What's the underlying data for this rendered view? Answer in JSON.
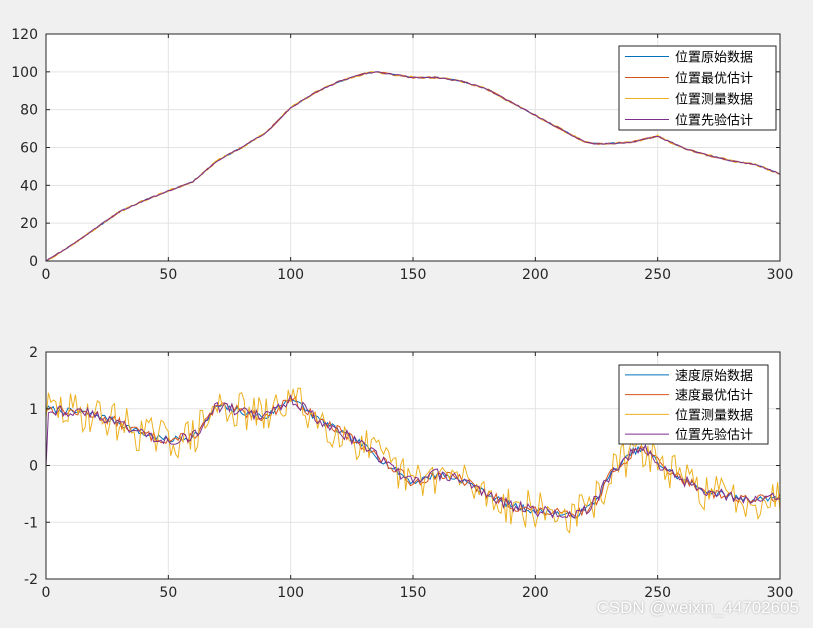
{
  "watermark": "CSDN @weixin_44702605",
  "colors": {
    "series1": "#0072BD",
    "series2": "#D95319",
    "series3": "#EDB120",
    "series4": "#7E2F8E",
    "grid": "#e3e3e3",
    "axis": "#262626",
    "figure_bg": "#f0f0f0",
    "axes_bg": "#ffffff"
  },
  "chart_data": [
    {
      "type": "line",
      "title": "",
      "xlabel": "",
      "ylabel": "",
      "xlim": [
        0,
        300
      ],
      "ylim": [
        0,
        120
      ],
      "xticks": [
        0,
        50,
        100,
        150,
        200,
        250,
        300
      ],
      "yticks": [
        0,
        20,
        40,
        60,
        80,
        100,
        120
      ],
      "grid": true,
      "legend_position": "top-right",
      "trend": {
        "x": [
          0,
          10,
          20,
          30,
          40,
          50,
          60,
          70,
          80,
          90,
          100,
          110,
          120,
          130,
          135,
          140,
          150,
          160,
          170,
          180,
          190,
          200,
          210,
          220,
          225,
          230,
          240,
          250,
          260,
          270,
          280,
          290,
          300
        ],
        "y": [
          0,
          8,
          17,
          26,
          32,
          37,
          42,
          53,
          60,
          68,
          81,
          89,
          95,
          99,
          100,
          99,
          97,
          97,
          95,
          91,
          84,
          77,
          70,
          63,
          62,
          62,
          63,
          66,
          60,
          56,
          53,
          51,
          46
        ]
      },
      "series": [
        {
          "name": "位置原始数据",
          "noise": 0.3,
          "seed": 11
        },
        {
          "name": "位置最优估计",
          "noise": 0.4,
          "seed": 23
        },
        {
          "name": "位置测量数据",
          "noise": 0.6,
          "seed": 37
        },
        {
          "name": "位置先验估计",
          "noise": 0.35,
          "seed": 51
        }
      ]
    },
    {
      "type": "line",
      "title": "",
      "xlabel": "",
      "ylabel": "",
      "xlim": [
        0,
        300
      ],
      "ylim": [
        -2,
        2
      ],
      "xticks": [
        0,
        50,
        100,
        150,
        200,
        250,
        300
      ],
      "yticks": [
        -2,
        -1,
        0,
        1,
        2
      ],
      "grid": true,
      "legend_position": "top-right",
      "trend": {
        "x": [
          0,
          10,
          20,
          30,
          40,
          50,
          60,
          65,
          70,
          80,
          90,
          100,
          110,
          120,
          130,
          140,
          150,
          160,
          170,
          180,
          190,
          200,
          210,
          215,
          220,
          225,
          230,
          240,
          245,
          250,
          260,
          270,
          280,
          290,
          300
        ],
        "y": [
          1.0,
          0.95,
          0.9,
          0.75,
          0.55,
          0.45,
          0.5,
          0.75,
          1.05,
          0.95,
          0.85,
          1.2,
          0.85,
          0.6,
          0.35,
          0.0,
          -0.3,
          -0.15,
          -0.25,
          -0.5,
          -0.7,
          -0.8,
          -0.85,
          -0.9,
          -0.8,
          -0.6,
          -0.2,
          0.25,
          0.3,
          0.05,
          -0.25,
          -0.45,
          -0.55,
          -0.6,
          -0.55
        ]
      },
      "series": [
        {
          "name": "速度原始数据",
          "noise": 0.06,
          "seed": 7
        },
        {
          "name": "速度最优估计",
          "noise": 0.09,
          "seed": 13
        },
        {
          "name": "位置测量数据",
          "noise": 0.35,
          "seed": 29
        },
        {
          "name": "位置先验估计",
          "noise": 0.1,
          "seed": 43
        }
      ]
    }
  ]
}
